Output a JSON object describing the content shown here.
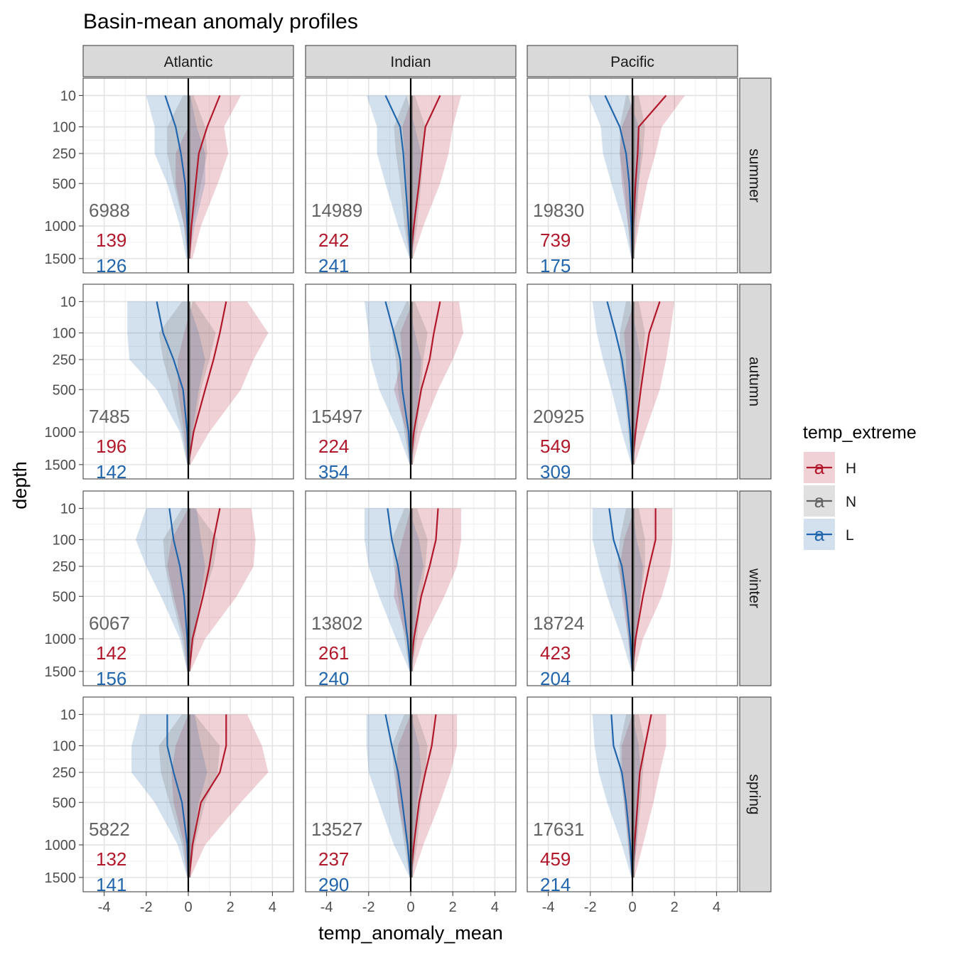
{
  "chart_data": {
    "type": "area",
    "title": "Basin-mean anomaly profiles",
    "xlabel": "temp_anomaly_mean",
    "ylabel": "depth",
    "x_ticks": [
      -4,
      -2,
      0,
      2,
      4
    ],
    "x_tick_labels": [
      "-4",
      "-2",
      "0",
      "2",
      "4"
    ],
    "xlim": [
      -5,
      5
    ],
    "y_ticks": [
      10,
      100,
      250,
      500,
      1000,
      1500
    ],
    "y_tick_labels": [
      "10",
      "100",
      "250",
      "500",
      "1000",
      "1500"
    ],
    "y_scale": "reversed square-root",
    "ylim": [
      0,
      1700
    ],
    "grid": true,
    "columns": [
      "Atlantic",
      "Indian",
      "Pacific"
    ],
    "rows": [
      "summer",
      "autumn",
      "winter",
      "spring"
    ],
    "legend": {
      "title": "temp_extreme",
      "placement": "right",
      "items": [
        {
          "key": "H",
          "glyph": "a",
          "color": "#b2182b"
        },
        {
          "key": "N",
          "glyph": "a",
          "color": "#636363"
        },
        {
          "key": "L",
          "glyph": "a",
          "color": "#2166ac"
        }
      ]
    },
    "colors": {
      "H": "#b2182b",
      "N": "#636363",
      "L": "#2166ac"
    },
    "depth_levels": [
      10,
      100,
      250,
      500,
      1000,
      1500
    ],
    "panels": [
      {
        "basin": "Atlantic",
        "season": "summer",
        "count_N": "6988",
        "count_H": "139",
        "count_L": "126",
        "H_mean": [
          1.5,
          0.9,
          0.5,
          0.35,
          0.15,
          0.05
        ],
        "H_min": [
          0.1,
          0.0,
          -0.6,
          -0.6,
          -0.2,
          0.0
        ],
        "H_max": [
          2.5,
          1.7,
          1.9,
          1.4,
          0.6,
          0.2
        ],
        "L_mean": [
          -1.1,
          -0.6,
          -0.35,
          -0.15,
          -0.05,
          0.0
        ],
        "L_min": [
          -2.0,
          -1.6,
          -1.6,
          -1.0,
          -0.4,
          -0.1
        ],
        "L_max": [
          0.1,
          0.4,
          0.8,
          0.8,
          0.3,
          0.05
        ],
        "N_min": [
          -0.25,
          -1.0,
          -1.0,
          -0.7,
          -0.2,
          -0.05
        ],
        "N_max": [
          0.25,
          0.8,
          0.9,
          0.6,
          0.2,
          0.05
        ]
      },
      {
        "basin": "Indian",
        "season": "summer",
        "count_N": "14989",
        "count_H": "242",
        "count_L": "241",
        "H_mean": [
          1.4,
          0.7,
          0.55,
          0.4,
          0.15,
          0.0
        ],
        "H_min": [
          0.1,
          -0.4,
          -0.3,
          -0.2,
          -0.2,
          -0.05
        ],
        "H_max": [
          2.4,
          2.0,
          1.8,
          1.4,
          0.6,
          0.1
        ],
        "L_mean": [
          -1.2,
          -0.5,
          -0.35,
          -0.25,
          -0.1,
          0.0
        ],
        "L_min": [
          -2.1,
          -1.6,
          -1.6,
          -1.2,
          -0.6,
          -0.05
        ],
        "L_max": [
          -0.2,
          0.2,
          0.5,
          0.4,
          0.2,
          0.05
        ],
        "N_min": [
          -0.2,
          -0.8,
          -0.7,
          -0.5,
          -0.3,
          -0.05
        ],
        "N_max": [
          0.2,
          0.7,
          0.6,
          0.5,
          0.3,
          0.05
        ]
      },
      {
        "basin": "Pacific",
        "season": "summer",
        "count_N": "19830",
        "count_H": "739",
        "count_L": "175",
        "H_mean": [
          1.6,
          0.3,
          0.25,
          0.15,
          0.05,
          0.0
        ],
        "H_min": [
          0.1,
          -0.5,
          -0.6,
          -0.5,
          -0.2,
          -0.05
        ],
        "H_max": [
          2.5,
          1.4,
          1.1,
          0.7,
          0.3,
          0.05
        ],
        "L_mean": [
          -1.3,
          -0.6,
          -0.3,
          -0.15,
          -0.05,
          0.0
        ],
        "L_min": [
          -2.1,
          -1.5,
          -1.4,
          -1.0,
          -0.4,
          -0.05
        ],
        "L_max": [
          -0.2,
          0.3,
          0.4,
          0.3,
          0.1,
          0.05
        ],
        "N_min": [
          -0.3,
          -0.6,
          -0.6,
          -0.4,
          -0.2,
          -0.05
        ],
        "N_max": [
          0.3,
          0.6,
          0.5,
          0.3,
          0.2,
          0.05
        ]
      },
      {
        "basin": "Atlantic",
        "season": "autumn",
        "count_N": "7485",
        "count_H": "196",
        "count_L": "142",
        "H_mean": [
          1.8,
          1.5,
          1.2,
          0.8,
          0.25,
          0.0
        ],
        "H_min": [
          0.2,
          -0.2,
          -0.5,
          -0.5,
          -0.2,
          -0.05
        ],
        "H_max": [
          2.8,
          3.8,
          3.1,
          2.5,
          1.0,
          0.1
        ],
        "L_mean": [
          -1.5,
          -1.2,
          -0.7,
          -0.25,
          -0.05,
          0.0
        ],
        "L_min": [
          -2.9,
          -2.9,
          -2.8,
          -1.5,
          -0.4,
          -0.05
        ],
        "L_max": [
          0.0,
          0.5,
          0.8,
          0.5,
          0.2,
          0.05
        ],
        "N_min": [
          -0.3,
          -1.4,
          -1.2,
          -0.8,
          -0.3,
          -0.05
        ],
        "N_max": [
          0.3,
          1.3,
          1.0,
          0.6,
          0.3,
          0.05
        ]
      },
      {
        "basin": "Indian",
        "season": "autumn",
        "count_N": "15497",
        "count_H": "224",
        "count_L": "354",
        "H_mean": [
          1.4,
          1.1,
          0.9,
          0.5,
          0.15,
          0.0
        ],
        "H_min": [
          0.1,
          -0.5,
          -0.4,
          -0.8,
          -0.2,
          -0.05
        ],
        "H_max": [
          2.3,
          2.5,
          2.0,
          1.3,
          0.5,
          0.1
        ],
        "L_mean": [
          -1.2,
          -0.8,
          -0.5,
          -0.4,
          -0.1,
          0.0
        ],
        "L_min": [
          -2.2,
          -2.0,
          -1.9,
          -1.5,
          -0.6,
          -0.05
        ],
        "L_max": [
          -0.1,
          0.2,
          0.5,
          0.4,
          0.2,
          0.05
        ],
        "N_min": [
          -0.2,
          -0.9,
          -0.7,
          -0.6,
          -0.3,
          -0.05
        ],
        "N_max": [
          0.2,
          0.8,
          0.6,
          0.5,
          0.3,
          0.05
        ]
      },
      {
        "basin": "Pacific",
        "season": "autumn",
        "count_N": "20925",
        "count_H": "549",
        "count_L": "309",
        "H_mean": [
          1.3,
          0.8,
          0.6,
          0.4,
          0.15,
          0.0
        ],
        "H_min": [
          0.1,
          -0.4,
          -0.3,
          -0.3,
          -0.1,
          -0.05
        ],
        "H_max": [
          2.0,
          1.8,
          1.6,
          1.3,
          0.6,
          0.1
        ],
        "L_mean": [
          -1.2,
          -0.8,
          -0.5,
          -0.3,
          -0.1,
          0.0
        ],
        "L_min": [
          -1.9,
          -1.7,
          -1.4,
          -1.0,
          -0.5,
          -0.05
        ],
        "L_max": [
          -0.1,
          0.2,
          0.4,
          0.3,
          0.2,
          0.05
        ],
        "N_min": [
          -0.3,
          -0.6,
          -0.6,
          -0.4,
          -0.2,
          -0.05
        ],
        "N_max": [
          0.3,
          0.6,
          0.5,
          0.4,
          0.2,
          0.05
        ]
      },
      {
        "basin": "Atlantic",
        "season": "winter",
        "count_N": "6067",
        "count_H": "142",
        "count_L": "156",
        "H_mean": [
          1.5,
          1.2,
          1.0,
          0.7,
          0.2,
          0.05
        ],
        "H_min": [
          0.0,
          -0.8,
          -1.0,
          -0.7,
          -0.2,
          -0.05
        ],
        "H_max": [
          3.0,
          3.2,
          3.1,
          2.3,
          0.8,
          0.1
        ],
        "L_mean": [
          -0.9,
          -0.7,
          -0.4,
          -0.2,
          -0.05,
          0.0
        ],
        "L_min": [
          -2.0,
          -2.5,
          -2.0,
          -1.3,
          -0.4,
          -0.05
        ],
        "L_max": [
          0.4,
          0.6,
          0.8,
          0.6,
          0.2,
          0.05
        ],
        "N_min": [
          -0.3,
          -1.2,
          -1.1,
          -0.8,
          -0.3,
          -0.05
        ],
        "N_max": [
          0.3,
          1.4,
          1.2,
          0.7,
          0.3,
          0.05
        ]
      },
      {
        "basin": "Indian",
        "season": "winter",
        "count_N": "13802",
        "count_H": "261",
        "count_L": "240",
        "H_mean": [
          1.3,
          1.2,
          0.9,
          0.5,
          0.15,
          0.0
        ],
        "H_min": [
          0.0,
          -0.4,
          -0.7,
          -0.8,
          -0.2,
          -0.05
        ],
        "H_max": [
          2.4,
          2.4,
          2.2,
          1.6,
          0.6,
          0.1
        ],
        "L_mean": [
          -1.1,
          -0.9,
          -0.6,
          -0.4,
          -0.15,
          0.0
        ],
        "L_min": [
          -2.2,
          -2.2,
          -2.0,
          -1.5,
          -0.7,
          -0.05
        ],
        "L_max": [
          -0.1,
          0.4,
          0.6,
          0.3,
          0.2,
          0.05
        ],
        "N_min": [
          -0.3,
          -0.9,
          -0.8,
          -0.6,
          -0.3,
          -0.05
        ],
        "N_max": [
          0.3,
          0.8,
          0.7,
          0.5,
          0.3,
          0.05
        ]
      },
      {
        "basin": "Pacific",
        "season": "winter",
        "count_N": "18724",
        "count_H": "423",
        "count_L": "204",
        "H_mean": [
          1.1,
          1.1,
          0.8,
          0.5,
          0.15,
          0.0
        ],
        "H_min": [
          0.1,
          -0.4,
          -0.6,
          -0.5,
          -0.2,
          -0.05
        ],
        "H_max": [
          1.9,
          1.9,
          1.8,
          1.4,
          0.5,
          0.1
        ],
        "L_mean": [
          -1.1,
          -0.9,
          -0.5,
          -0.3,
          -0.1,
          0.0
        ],
        "L_min": [
          -1.9,
          -1.9,
          -1.6,
          -1.2,
          -0.5,
          -0.05
        ],
        "L_max": [
          0.0,
          0.2,
          0.5,
          0.4,
          0.2,
          0.05
        ],
        "N_min": [
          -0.3,
          -0.6,
          -0.7,
          -0.4,
          -0.2,
          -0.05
        ],
        "N_max": [
          0.3,
          0.6,
          0.6,
          0.4,
          0.2,
          0.05
        ]
      },
      {
        "basin": "Atlantic",
        "season": "spring",
        "count_N": "5822",
        "count_H": "132",
        "count_L": "141",
        "H_mean": [
          1.8,
          1.8,
          1.5,
          0.6,
          0.2,
          0.05
        ],
        "H_min": [
          0.0,
          -0.6,
          -0.8,
          -0.7,
          -0.2,
          -0.05
        ],
        "H_max": [
          2.8,
          3.5,
          3.8,
          2.5,
          0.8,
          0.1
        ],
        "L_mean": [
          -1.0,
          -1.0,
          -0.7,
          -0.3,
          -0.05,
          0.0
        ],
        "L_min": [
          -2.3,
          -2.7,
          -2.7,
          -1.6,
          -0.5,
          -0.05
        ],
        "L_max": [
          0.3,
          0.6,
          0.9,
          0.5,
          0.2,
          0.05
        ],
        "N_min": [
          -0.3,
          -1.4,
          -1.3,
          -0.9,
          -0.3,
          -0.05
        ],
        "N_max": [
          0.3,
          1.5,
          1.4,
          0.8,
          0.3,
          0.05
        ]
      },
      {
        "basin": "Indian",
        "season": "spring",
        "count_N": "13527",
        "count_H": "237",
        "count_L": "290",
        "H_mean": [
          1.2,
          1.0,
          0.7,
          0.4,
          0.15,
          0.0
        ],
        "H_min": [
          0.0,
          -0.6,
          -0.7,
          -0.6,
          -0.2,
          -0.05
        ],
        "H_max": [
          2.2,
          2.2,
          1.9,
          1.4,
          0.6,
          0.1
        ],
        "L_mean": [
          -1.2,
          -0.9,
          -0.6,
          -0.4,
          -0.15,
          0.0
        ],
        "L_min": [
          -2.1,
          -2.1,
          -2.0,
          -1.5,
          -0.8,
          -0.05
        ],
        "L_max": [
          0.0,
          0.4,
          0.5,
          0.3,
          0.2,
          0.05
        ],
        "N_min": [
          -0.3,
          -0.9,
          -0.8,
          -0.6,
          -0.3,
          -0.05
        ],
        "N_max": [
          0.3,
          0.8,
          0.7,
          0.5,
          0.3,
          0.05
        ]
      },
      {
        "basin": "Pacific",
        "season": "spring",
        "count_N": "17631",
        "count_H": "459",
        "count_L": "214",
        "H_mean": [
          0.9,
          0.6,
          0.35,
          0.25,
          0.1,
          0.0
        ],
        "H_min": [
          0.0,
          -0.5,
          -0.5,
          -0.4,
          -0.2,
          -0.05
        ],
        "H_max": [
          1.6,
          1.6,
          1.3,
          1.0,
          0.5,
          0.1
        ],
        "L_mean": [
          -1.0,
          -0.9,
          -0.5,
          -0.3,
          -0.1,
          0.0
        ],
        "L_min": [
          -1.9,
          -1.8,
          -1.6,
          -1.2,
          -0.5,
          -0.05
        ],
        "L_max": [
          0.0,
          0.3,
          0.4,
          0.3,
          0.2,
          0.05
        ],
        "N_min": [
          -0.3,
          -0.6,
          -0.6,
          -0.4,
          -0.2,
          -0.05
        ],
        "N_max": [
          0.3,
          0.6,
          0.5,
          0.4,
          0.2,
          0.05
        ]
      }
    ]
  }
}
